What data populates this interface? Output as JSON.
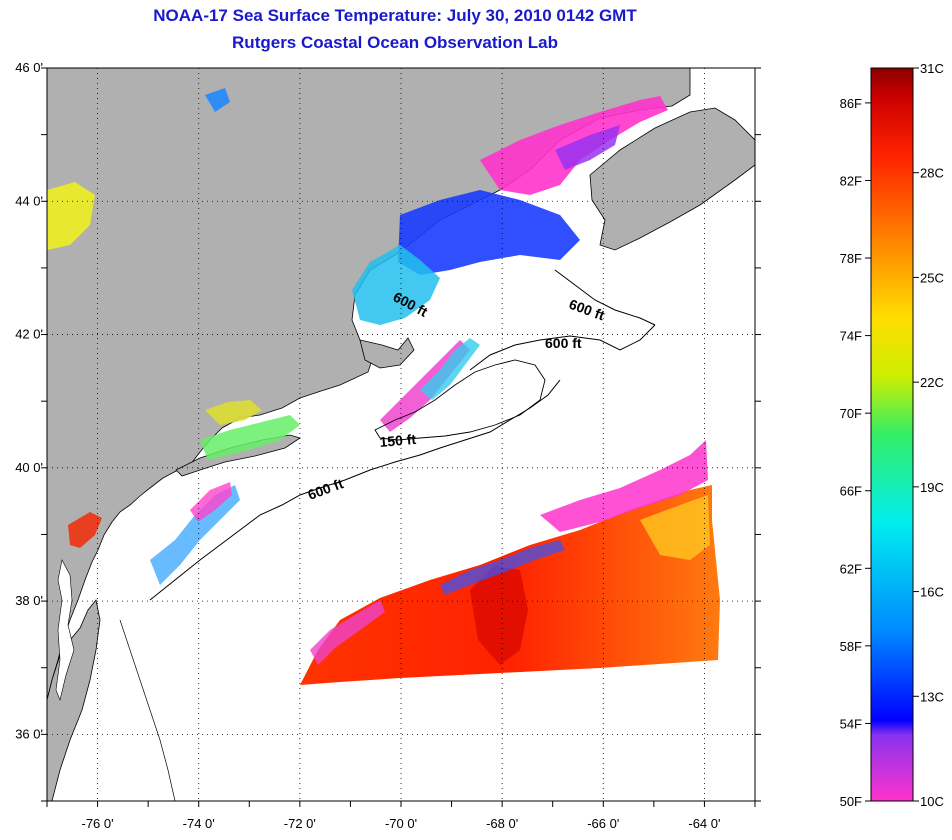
{
  "header": {
    "title": "NOAA-17 Sea Surface Temperature:  July 30, 2010 0142 GMT",
    "subtitle": "Rutgers Coastal Ocean Observation Lab"
  },
  "map": {
    "lat_labels": [
      "46 0'",
      "44 0'",
      "42 0'",
      "40 0'",
      "38 0'",
      "36 0'"
    ],
    "lon_labels": [
      "-76 0'",
      "-74 0'",
      "-72 0'",
      "-70 0'",
      "-68 0'",
      "-66 0'",
      "-64 0'"
    ],
    "lat_range": [
      35,
      46
    ],
    "lon_range": [
      -77,
      -63
    ],
    "land_color": "#b0b0b0",
    "ocean_color": "#ffffff",
    "contour_labels": {
      "c1": "600 ft",
      "c2": "600 ft",
      "c3": "600 ft",
      "c4": "150 ft",
      "c5": "600 ft"
    }
  },
  "colorbar": {
    "f_labels": [
      "86F",
      "82F",
      "78F",
      "74F",
      "70F",
      "66F",
      "62F",
      "58F",
      "54F",
      "50F"
    ],
    "c_labels": [
      "31C",
      "28C",
      "25C",
      "22C",
      "19C",
      "16C",
      "13C",
      "10C"
    ],
    "colors": [
      "#ff33cc",
      "#8833ee",
      "#0000ff",
      "#0088ff",
      "#00eeee",
      "#33ee66",
      "#ccee00",
      "#ffdd00",
      "#ff8800",
      "#ff2200",
      "#cc0000",
      "#880000"
    ]
  }
}
